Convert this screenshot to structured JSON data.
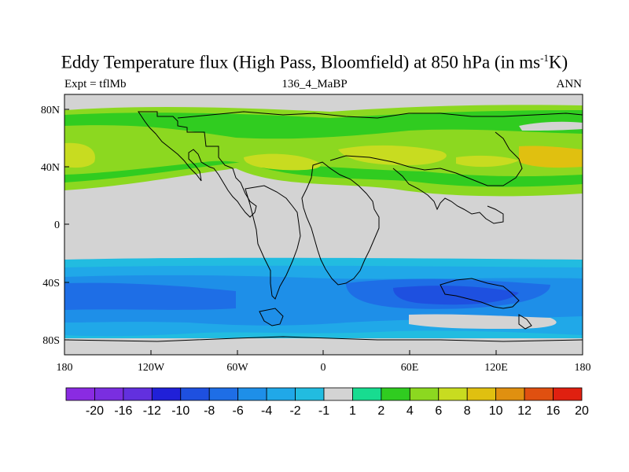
{
  "title": {
    "main": "Eddy Temperature flux (High Pass, Bloomfield) at 850 hPa (in ms",
    "superscript": "-1",
    "tail": "K)"
  },
  "subtitle": {
    "left": "Expt = tflMb",
    "center": "136_4_MaBP",
    "right": "ANN"
  },
  "axes": {
    "lat_labels": [
      "80N",
      "40N",
      "0",
      "40S",
      "80S"
    ],
    "lon_labels": [
      "180",
      "120W",
      "60W",
      "0",
      "60E",
      "120E",
      "180"
    ]
  },
  "colorbar": {
    "labels": [
      "-20",
      "-16",
      "-12",
      "-10",
      "-8",
      "-6",
      "-4",
      "-2",
      "-1",
      "1",
      "2",
      "4",
      "6",
      "8",
      "10",
      "12",
      "16",
      "20"
    ],
    "colors": [
      "#8a2be2",
      "#7a2ee0",
      "#6230de",
      "#2020d8",
      "#1e50e0",
      "#1e6ee6",
      "#1e8fe8",
      "#20a8e8",
      "#22bce0",
      "#d3d3d3",
      "#18dc90",
      "#30cc20",
      "#8cd820",
      "#c8dc20",
      "#e0c010",
      "#e09010",
      "#e05010",
      "#e02010"
    ]
  },
  "colors": {
    "land_fill": "#d3d3d3",
    "coast": "#000000"
  }
}
